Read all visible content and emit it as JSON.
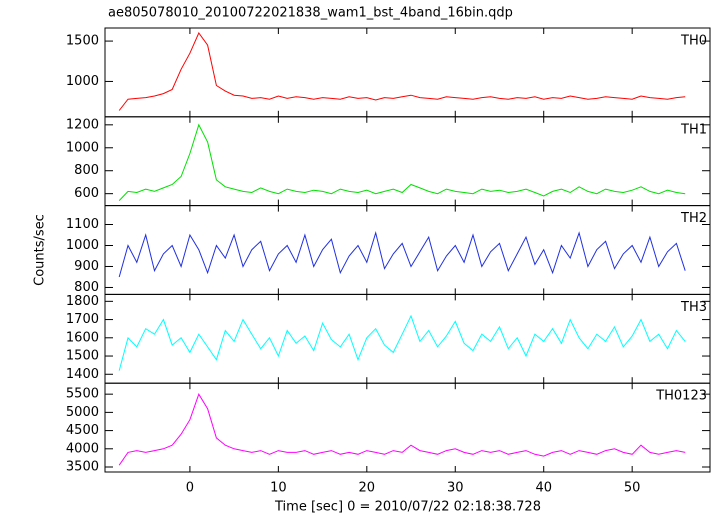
{
  "chart_data": {
    "type": "line",
    "title": "ae805078010_20100722021838_wam1_bst_4band_16bin.qdp",
    "xlabel": "Time [sec] 0 = 2010/07/22 02:18:38.728",
    "ylabel": "Counts/sec",
    "x": [
      -8,
      -7,
      -6,
      -5,
      -4,
      -3,
      -2,
      -1,
      0,
      1,
      2,
      3,
      4,
      5,
      6,
      7,
      8,
      9,
      10,
      11,
      12,
      13,
      14,
      15,
      16,
      17,
      18,
      19,
      20,
      21,
      22,
      23,
      24,
      25,
      26,
      27,
      28,
      29,
      30,
      31,
      32,
      33,
      34,
      35,
      36,
      37,
      38,
      39,
      40,
      41,
      42,
      43,
      44,
      45,
      46,
      47,
      48,
      49,
      50,
      51,
      52,
      53,
      54,
      55,
      56
    ],
    "xlim": [
      -9.6,
      58.8
    ],
    "xticks": [
      0,
      10,
      20,
      30,
      40,
      50
    ],
    "series": [
      {
        "name": "TH0",
        "color": "#ff0000",
        "ylim": [
          562,
          1662
        ],
        "yticks": [
          1000,
          1500
        ],
        "values": [
          640,
          780,
          790,
          800,
          820,
          850,
          900,
          1150,
          1350,
          1600,
          1450,
          950,
          880,
          830,
          820,
          790,
          800,
          780,
          820,
          790,
          810,
          800,
          780,
          800,
          790,
          780,
          810,
          790,
          800,
          770,
          800,
          790,
          810,
          830,
          800,
          790,
          780,
          810,
          800,
          790,
          780,
          800,
          810,
          790,
          780,
          800,
          790,
          810,
          780,
          800,
          790,
          820,
          800,
          780,
          790,
          810,
          800,
          790,
          780,
          820,
          800,
          790,
          780,
          800,
          810
        ]
      },
      {
        "name": "TH1",
        "color": "#00e000",
        "ylim": [
          496,
          1270
        ],
        "yticks": [
          600,
          800,
          1000,
          1200
        ],
        "values": [
          540,
          620,
          610,
          640,
          620,
          650,
          680,
          750,
          950,
          1200,
          1050,
          720,
          660,
          640,
          620,
          610,
          650,
          620,
          600,
          640,
          620,
          610,
          630,
          620,
          600,
          640,
          620,
          610,
          630,
          600,
          620,
          640,
          610,
          680,
          650,
          620,
          600,
          640,
          620,
          610,
          600,
          640,
          620,
          630,
          610,
          620,
          640,
          610,
          580,
          620,
          640,
          610,
          660,
          620,
          600,
          640,
          620,
          610,
          630,
          660,
          620,
          600,
          630,
          610,
          600
        ]
      },
      {
        "name": "TH2",
        "color": "#2030e0",
        "ylim": [
          767,
          1190
        ],
        "yticks": [
          800,
          900,
          1000,
          1100
        ],
        "values": [
          850,
          1000,
          920,
          1050,
          880,
          960,
          1000,
          900,
          1050,
          980,
          870,
          1000,
          940,
          1050,
          900,
          980,
          1020,
          880,
          960,
          1000,
          920,
          1050,
          900,
          980,
          1030,
          870,
          950,
          1000,
          920,
          1060,
          890,
          960,
          1010,
          900,
          970,
          1040,
          880,
          950,
          1000,
          920,
          1050,
          900,
          970,
          1010,
          880,
          960,
          1040,
          910,
          980,
          870,
          1000,
          940,
          1060,
          900,
          980,
          1020,
          890,
          960,
          1000,
          920,
          1040,
          900,
          970,
          1010,
          880
        ]
      },
      {
        "name": "TH3",
        "color": "#00ffff",
        "ylim": [
          1351,
          1838
        ],
        "yticks": [
          1400,
          1500,
          1600,
          1700,
          1800
        ],
        "values": [
          1420,
          1600,
          1550,
          1650,
          1620,
          1700,
          1560,
          1600,
          1520,
          1620,
          1550,
          1480,
          1640,
          1580,
          1700,
          1620,
          1540,
          1600,
          1500,
          1640,
          1570,
          1610,
          1530,
          1680,
          1590,
          1550,
          1620,
          1480,
          1600,
          1650,
          1560,
          1520,
          1620,
          1720,
          1580,
          1640,
          1550,
          1610,
          1690,
          1570,
          1530,
          1620,
          1580,
          1660,
          1540,
          1600,
          1500,
          1620,
          1580,
          1650,
          1570,
          1700,
          1600,
          1540,
          1620,
          1580,
          1660,
          1550,
          1610,
          1700,
          1580,
          1620,
          1540,
          1640,
          1580
        ]
      },
      {
        "name": "TH0123",
        "color": "#ff00ff",
        "ylim": [
          3363,
          5801
        ],
        "yticks": [
          3500,
          4000,
          4500,
          5000,
          5500
        ],
        "values": [
          3550,
          3900,
          3950,
          3900,
          3950,
          4000,
          4100,
          4400,
          4800,
          5500,
          5100,
          4300,
          4100,
          4000,
          3950,
          3900,
          3950,
          3850,
          3950,
          3900,
          3900,
          3950,
          3850,
          3900,
          3950,
          3850,
          3900,
          3850,
          3950,
          3900,
          3850,
          3950,
          3900,
          4100,
          3950,
          3900,
          3850,
          3950,
          4000,
          3900,
          3850,
          3950,
          3900,
          3950,
          3850,
          3900,
          3950,
          3850,
          3800,
          3900,
          3950,
          3850,
          3950,
          3900,
          3850,
          3950,
          4000,
          3900,
          3850,
          4100,
          3900,
          3850,
          3900,
          3950,
          3900
        ]
      }
    ]
  }
}
